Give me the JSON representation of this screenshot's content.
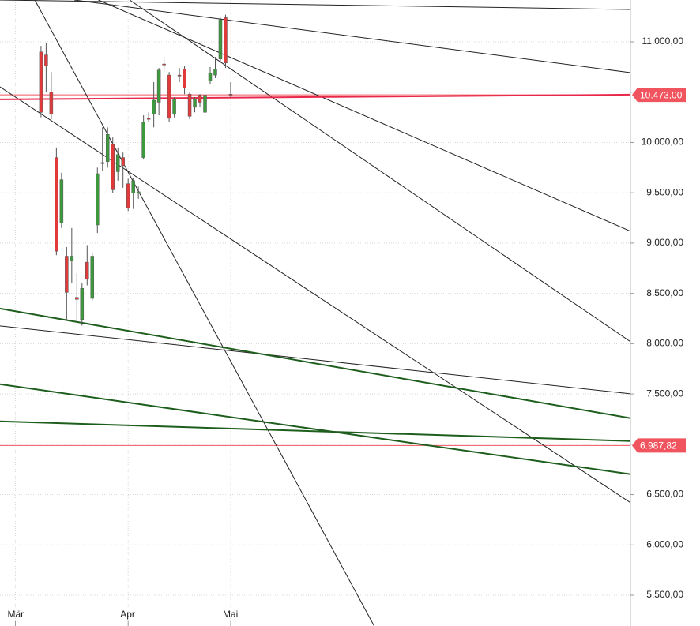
{
  "chart_data": {
    "type": "candlestick",
    "xlim": [
      -3,
      120
    ],
    "xticks": [
      {
        "value": 0,
        "label": "Mär"
      },
      {
        "value": 22,
        "label": "Apr"
      },
      {
        "value": 42,
        "label": "Mai"
      }
    ],
    "ylim": [
      5194,
      11416
    ],
    "yticks": [
      {
        "value": 5500,
        "label": "5.500,00"
      },
      {
        "value": 6000,
        "label": "6.000,00"
      },
      {
        "value": 6500,
        "label": "6.500,00"
      },
      {
        "value": 7000,
        "label": "7.000,00"
      },
      {
        "value": 7500,
        "label": "7.500,00"
      },
      {
        "value": 8000,
        "label": "8.000,00"
      },
      {
        "value": 8500,
        "label": "8.500,00"
      },
      {
        "value": 9000,
        "label": "9.000,00"
      },
      {
        "value": 9500,
        "label": "9.500,00"
      },
      {
        "value": 10000,
        "label": "10.000,00"
      },
      {
        "value": 10500,
        "label": "10.500,00"
      },
      {
        "value": 11000,
        "label": "11.000,00"
      }
    ],
    "grid": true,
    "up_color": "#3c9a3c",
    "down_color": "#e03a3a",
    "candles": {
      "x": [
        5,
        6,
        7,
        8,
        9,
        10,
        11,
        12,
        13,
        14,
        15,
        16,
        17,
        18,
        19,
        20,
        21,
        22,
        23,
        24,
        25,
        26,
        27,
        28,
        29,
        30,
        31,
        32,
        33,
        34,
        35,
        36,
        37,
        38,
        39,
        40,
        41,
        42
      ],
      "open": [
        10900,
        10870,
        10500,
        9850,
        9200,
        8870,
        8830,
        8460,
        8240,
        8810,
        8450,
        9180,
        9790,
        9810,
        9980,
        9710,
        9850,
        9590,
        9500,
        9500,
        9850,
        10240,
        10280,
        10400,
        10780,
        10670,
        10280,
        10670,
        10730,
        10480,
        10350,
        10470,
        10300,
        10610,
        10670,
        10830,
        11240,
        10480
      ],
      "high": [
        10960,
        10990,
        10700,
        9950,
        9700,
        8960,
        9150,
        8700,
        8600,
        8980,
        8900,
        9750,
        10150,
        10150,
        10050,
        9950,
        9900,
        9640,
        9650,
        9560,
        10270,
        10300,
        10600,
        10740,
        10850,
        10700,
        10450,
        10740,
        10760,
        10500,
        10450,
        10480,
        10500,
        10750,
        10850,
        11240,
        11270,
        10600
      ],
      "low": [
        10250,
        10500,
        10230,
        8880,
        9150,
        8230,
        8600,
        8220,
        8180,
        8580,
        8430,
        9100,
        9720,
        9750,
        9500,
        9620,
        9550,
        9320,
        9340,
        9440,
        9830,
        10200,
        10150,
        10270,
        10700,
        10200,
        10250,
        10600,
        10480,
        10230,
        10300,
        10350,
        10280,
        10580,
        10640,
        10800,
        10740,
        10450
      ],
      "close": [
        10300,
        10760,
        10280,
        8920,
        9630,
        8510,
        8870,
        8440,
        8550,
        8640,
        8870,
        9690,
        9800,
        10080,
        9530,
        9880,
        9770,
        9350,
        9620,
        9510,
        10200,
        10230,
        10420,
        10720,
        10770,
        10240,
        10430,
        10660,
        10540,
        10260,
        10430,
        10400,
        10470,
        10690,
        10730,
        11220,
        10790,
        10470
      ]
    },
    "trend_lines": [
      {
        "x": [
          -3,
          120
        ],
        "values": [
          11416,
          11322
        ],
        "color": "#222222"
      },
      {
        "x": [
          11.5,
          120
        ],
        "values": [
          11416,
          10694
        ],
        "color": "#222222"
      },
      {
        "x": [
          16.2,
          120
        ],
        "values": [
          11416,
          9118
        ],
        "color": "#222222"
      },
      {
        "x": [
          22.3,
          120
        ],
        "values": [
          11416,
          8020
        ],
        "color": "#222222"
      },
      {
        "x": [
          -3,
          120
        ],
        "values": [
          10553,
          6420
        ],
        "color": "#222222"
      },
      {
        "x": [
          3.8,
          70
        ],
        "values": [
          11416,
          5194
        ],
        "color": "#222222"
      },
      {
        "x": [
          -3,
          120
        ],
        "values": [
          8177,
          7502
        ],
        "color": "#222222"
      },
      {
        "x": [
          -3,
          120
        ],
        "values": [
          8349,
          7259
        ],
        "color": "#1d5e1d"
      },
      {
        "x": [
          -3,
          120
        ],
        "values": [
          7597,
          6702
        ],
        "color": "#1d5e1d"
      },
      {
        "x": [
          -3,
          120
        ],
        "values": [
          7228,
          7032
        ],
        "color": "#1d5e1d"
      },
      {
        "x": [
          -3,
          120
        ],
        "values": [
          10428,
          10475
        ],
        "color": "#e8284a"
      }
    ],
    "price_lines": {
      "values": [
        10473,
        6987.82
      ],
      "value_labels": [
        "10.473,00",
        "6.987,82"
      ],
      "color": "#f0545e"
    }
  }
}
